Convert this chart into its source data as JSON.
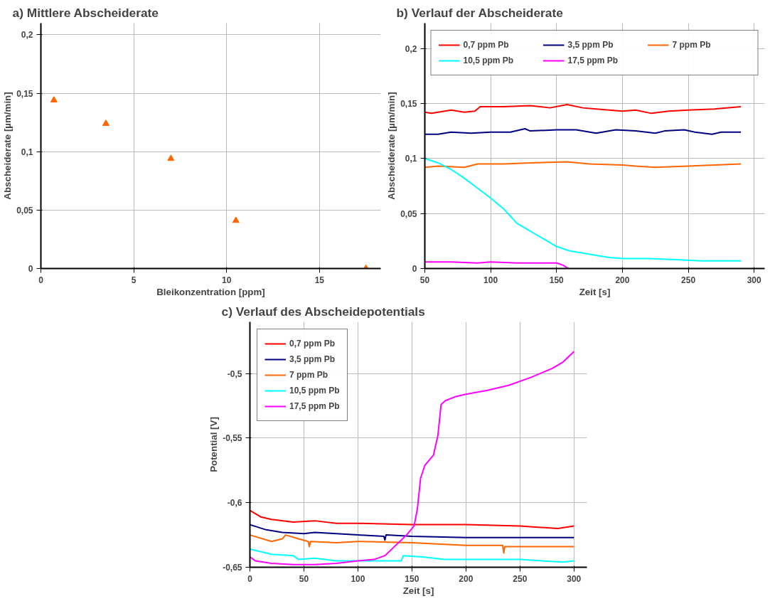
{
  "chart_data": [
    {
      "type": "scatter",
      "title": "a) Mittlere Abscheiderate",
      "xlabel": "Bleikonzentration [ppm]",
      "ylabel": "Abscheiderate [µm/min]",
      "marker": "triangle",
      "grid": true,
      "xlim": [
        0,
        18.3
      ],
      "ylim": [
        0,
        0.21
      ],
      "xticks": [
        0,
        5,
        10,
        15
      ],
      "yticks": [
        0,
        {
          "value": 0.05,
          "label": "0,05"
        },
        {
          "value": 0.1,
          "label": "0,1"
        },
        {
          "value": 0.15,
          "label": "0,15"
        },
        {
          "value": 0.2,
          "label": "0,2"
        }
      ],
      "series": [
        {
          "color": "#ff6600",
          "x": [
            0.7,
            3.5,
            7,
            10.5,
            17.5
          ],
          "values": [
            0.144,
            0.124,
            0.094,
            0.041,
            0.0
          ]
        }
      ]
    },
    {
      "type": "line",
      "title": "b) Verlauf der Abscheiderate",
      "xlabel": "Zeit [s]",
      "ylabel": "Abscheiderate [µm/min]",
      "grid": true,
      "legend": "top",
      "xlim": [
        50,
        308
      ],
      "ylim": [
        0,
        0.223
      ],
      "xticks": [
        50,
        100,
        150,
        200,
        250,
        300
      ],
      "yticks": [
        0,
        {
          "value": 0.05,
          "label": "0,05"
        },
        {
          "value": 0.1,
          "label": "0,1"
        },
        {
          "value": 0.15,
          "label": "0,15"
        },
        {
          "value": 0.2,
          "label": "0,2"
        }
      ],
      "series": [
        {
          "name": "0,7 ppm Pb",
          "color": "#ff0000",
          "x": [
            50,
            55,
            70,
            80,
            88,
            92,
            110,
            130,
            145,
            158,
            170,
            180,
            200,
            210,
            222,
            235,
            250,
            270,
            290
          ],
          "values": [
            0.142,
            0.141,
            0.144,
            0.142,
            0.143,
            0.147,
            0.147,
            0.148,
            0.146,
            0.149,
            0.146,
            0.145,
            0.143,
            0.144,
            0.141,
            0.143,
            0.144,
            0.145,
            0.147
          ]
        },
        {
          "name": "3,5 ppm Pb",
          "color": "#000080",
          "x": [
            50,
            60,
            70,
            85,
            100,
            115,
            126,
            130,
            150,
            165,
            180,
            195,
            210,
            225,
            232,
            247,
            255,
            268,
            275,
            290
          ],
          "values": [
            0.122,
            0.122,
            0.124,
            0.123,
            0.124,
            0.124,
            0.127,
            0.125,
            0.126,
            0.126,
            0.123,
            0.126,
            0.125,
            0.123,
            0.125,
            0.126,
            0.124,
            0.122,
            0.124,
            0.124
          ]
        },
        {
          "name": "7 ppm Pb",
          "color": "#ff6600",
          "x": [
            50,
            60,
            80,
            90,
            110,
            130,
            158,
            175,
            200,
            210,
            225,
            250,
            270,
            290
          ],
          "values": [
            0.092,
            0.093,
            0.092,
            0.095,
            0.095,
            0.096,
            0.097,
            0.095,
            0.094,
            0.093,
            0.092,
            0.093,
            0.094,
            0.095
          ]
        },
        {
          "name": "10,5 ppm Pb",
          "color": "#00ffff",
          "x": [
            50,
            60,
            70,
            80,
            90,
            100,
            110,
            120,
            130,
            140,
            150,
            160,
            170,
            180,
            190,
            200,
            220,
            240,
            260,
            290
          ],
          "values": [
            0.1,
            0.096,
            0.09,
            0.082,
            0.073,
            0.064,
            0.054,
            0.041,
            0.034,
            0.027,
            0.02,
            0.016,
            0.014,
            0.012,
            0.01,
            0.009,
            0.009,
            0.008,
            0.007,
            0.007
          ]
        },
        {
          "name": "17,5 ppm Pb",
          "color": "#ff00ff",
          "x": [
            50,
            70,
            90,
            100,
            120,
            140,
            150,
            155,
            159
          ],
          "values": [
            0.006,
            0.006,
            0.005,
            0.006,
            0.005,
            0.005,
            0.005,
            0.003,
            0.0
          ]
        }
      ]
    },
    {
      "type": "line",
      "title": "c) Verlauf des Abscheidepotentials",
      "xlabel": "Zeit [s]",
      "ylabel": "Potential [V]",
      "grid": true,
      "legend": "top left",
      "xlim": [
        0,
        312
      ],
      "ylim": [
        -0.65,
        -0.46
      ],
      "xticks": [
        0,
        50,
        100,
        150,
        200,
        250,
        300
      ],
      "yticks": [
        {
          "value": -0.65,
          "label": "-0,65"
        },
        {
          "value": -0.6,
          "label": "-0,6"
        },
        {
          "value": -0.55,
          "label": "-0,55"
        },
        {
          "value": -0.5,
          "label": "-0,5"
        }
      ],
      "series": [
        {
          "name": "0,7 ppm Pb",
          "color": "#ff0000",
          "x": [
            0,
            10,
            20,
            40,
            60,
            80,
            100,
            150,
            200,
            250,
            285,
            300
          ],
          "values": [
            -0.606,
            -0.611,
            -0.613,
            -0.615,
            -0.614,
            -0.616,
            -0.616,
            -0.617,
            -0.617,
            -0.618,
            -0.62,
            -0.618
          ]
        },
        {
          "name": "3,5 ppm Pb",
          "color": "#000080",
          "x": [
            0,
            15,
            30,
            50,
            60,
            80,
            100,
            124,
            125,
            126,
            150,
            200,
            250,
            300
          ],
          "values": [
            -0.617,
            -0.621,
            -0.623,
            -0.624,
            -0.623,
            -0.624,
            -0.625,
            -0.626,
            -0.629,
            -0.625,
            -0.626,
            -0.627,
            -0.627,
            -0.627
          ]
        },
        {
          "name": "7 ppm Pb",
          "color": "#ff6600",
          "x": [
            0,
            20,
            30,
            33,
            45,
            54,
            55,
            56,
            80,
            100,
            150,
            200,
            234,
            235,
            236,
            250,
            300
          ],
          "values": [
            -0.625,
            -0.63,
            -0.628,
            -0.625,
            -0.628,
            -0.63,
            -0.634,
            -0.63,
            -0.631,
            -0.63,
            -0.631,
            -0.633,
            -0.633,
            -0.639,
            -0.634,
            -0.634,
            -0.634
          ]
        },
        {
          "name": "10,5 ppm Pb",
          "color": "#00ffff",
          "x": [
            0,
            20,
            40,
            45,
            60,
            80,
            100,
            120,
            140,
            142,
            160,
            180,
            200,
            250,
            290,
            300
          ],
          "values": [
            -0.636,
            -0.64,
            -0.641,
            -0.644,
            -0.643,
            -0.645,
            -0.645,
            -0.645,
            -0.645,
            -0.641,
            -0.642,
            -0.644,
            -0.644,
            -0.644,
            -0.646,
            -0.645
          ]
        },
        {
          "name": "17,5 ppm Pb",
          "color": "#ff00ff",
          "x": [
            0,
            5,
            20,
            40,
            60,
            80,
            100,
            115,
            125,
            135,
            145,
            152,
            155,
            158,
            162,
            170,
            174,
            177,
            181,
            190,
            200,
            220,
            240,
            260,
            280,
            290,
            300
          ],
          "values": [
            -0.642,
            -0.645,
            -0.647,
            -0.648,
            -0.648,
            -0.647,
            -0.645,
            -0.644,
            -0.641,
            -0.633,
            -0.625,
            -0.618,
            -0.605,
            -0.581,
            -0.571,
            -0.563,
            -0.548,
            -0.524,
            -0.521,
            -0.518,
            -0.516,
            -0.513,
            -0.509,
            -0.503,
            -0.496,
            -0.491,
            -0.483
          ]
        }
      ]
    }
  ]
}
